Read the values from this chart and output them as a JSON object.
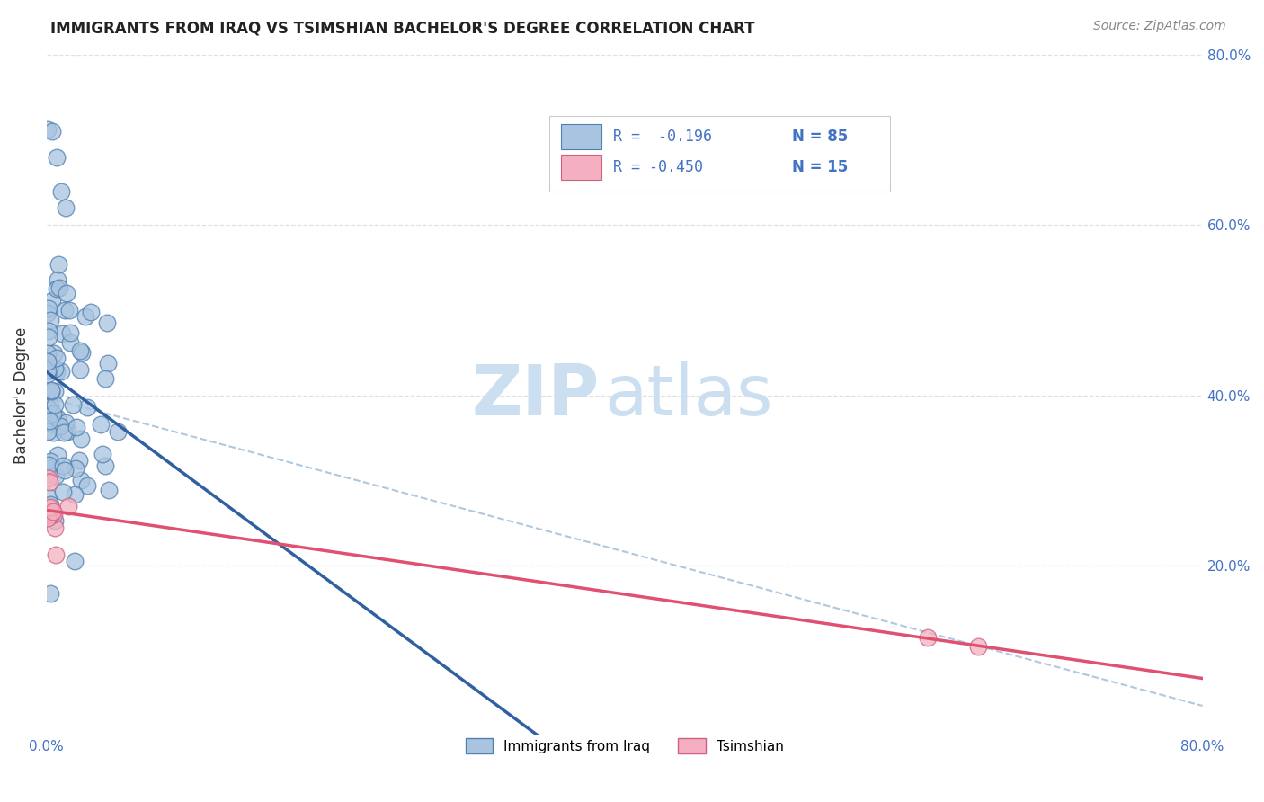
{
  "title": "IMMIGRANTS FROM IRAQ VS TSIMSHIAN BACHELOR'S DEGREE CORRELATION CHART",
  "source": "Source: ZipAtlas.com",
  "ylabel": "Bachelor's Degree",
  "legend_label_blue": "Immigrants from Iraq",
  "legend_label_pink": "Tsimshian",
  "legend_r_blue": "R =  -0.196",
  "legend_n_blue": "N = 85",
  "legend_r_pink": "R = -0.450",
  "legend_n_pink": "N = 15",
  "blue_color": "#a8c4e0",
  "blue_edge_color": "#5080b0",
  "blue_line_color": "#3060a0",
  "pink_color": "#f4b0c0",
  "pink_edge_color": "#d06080",
  "pink_line_color": "#e05070",
  "dashed_line_color": "#b0c8e0",
  "background_color": "#ffffff",
  "grid_color": "#dddddd"
}
